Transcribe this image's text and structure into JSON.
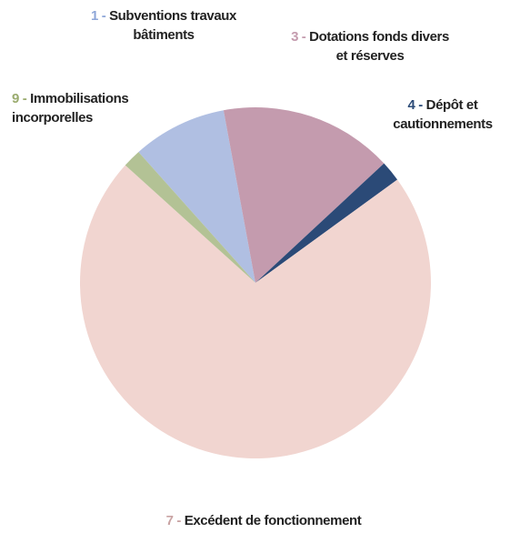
{
  "chart_data": {
    "type": "pie",
    "categories": [
      "1 - Subventions travaux bâtiments",
      "3 - Dotations fonds divers et réserves",
      "4 - Dépôt et cautionnements",
      "7 - Excédent de fonctionnement",
      "9 - Immobilisations incorporelles"
    ],
    "values": [
      8.7,
      16,
      1.9,
      71.7,
      1.7
    ],
    "colors": [
      "#b0bfe2",
      "#c49bae",
      "#2b4a77",
      "#f1d5d0",
      "#b3c295"
    ],
    "label_colors": [
      "#8da6d8",
      "#c49bae",
      "#2b4a77",
      "#c9a3a3",
      "#9aab6e"
    ]
  }
}
